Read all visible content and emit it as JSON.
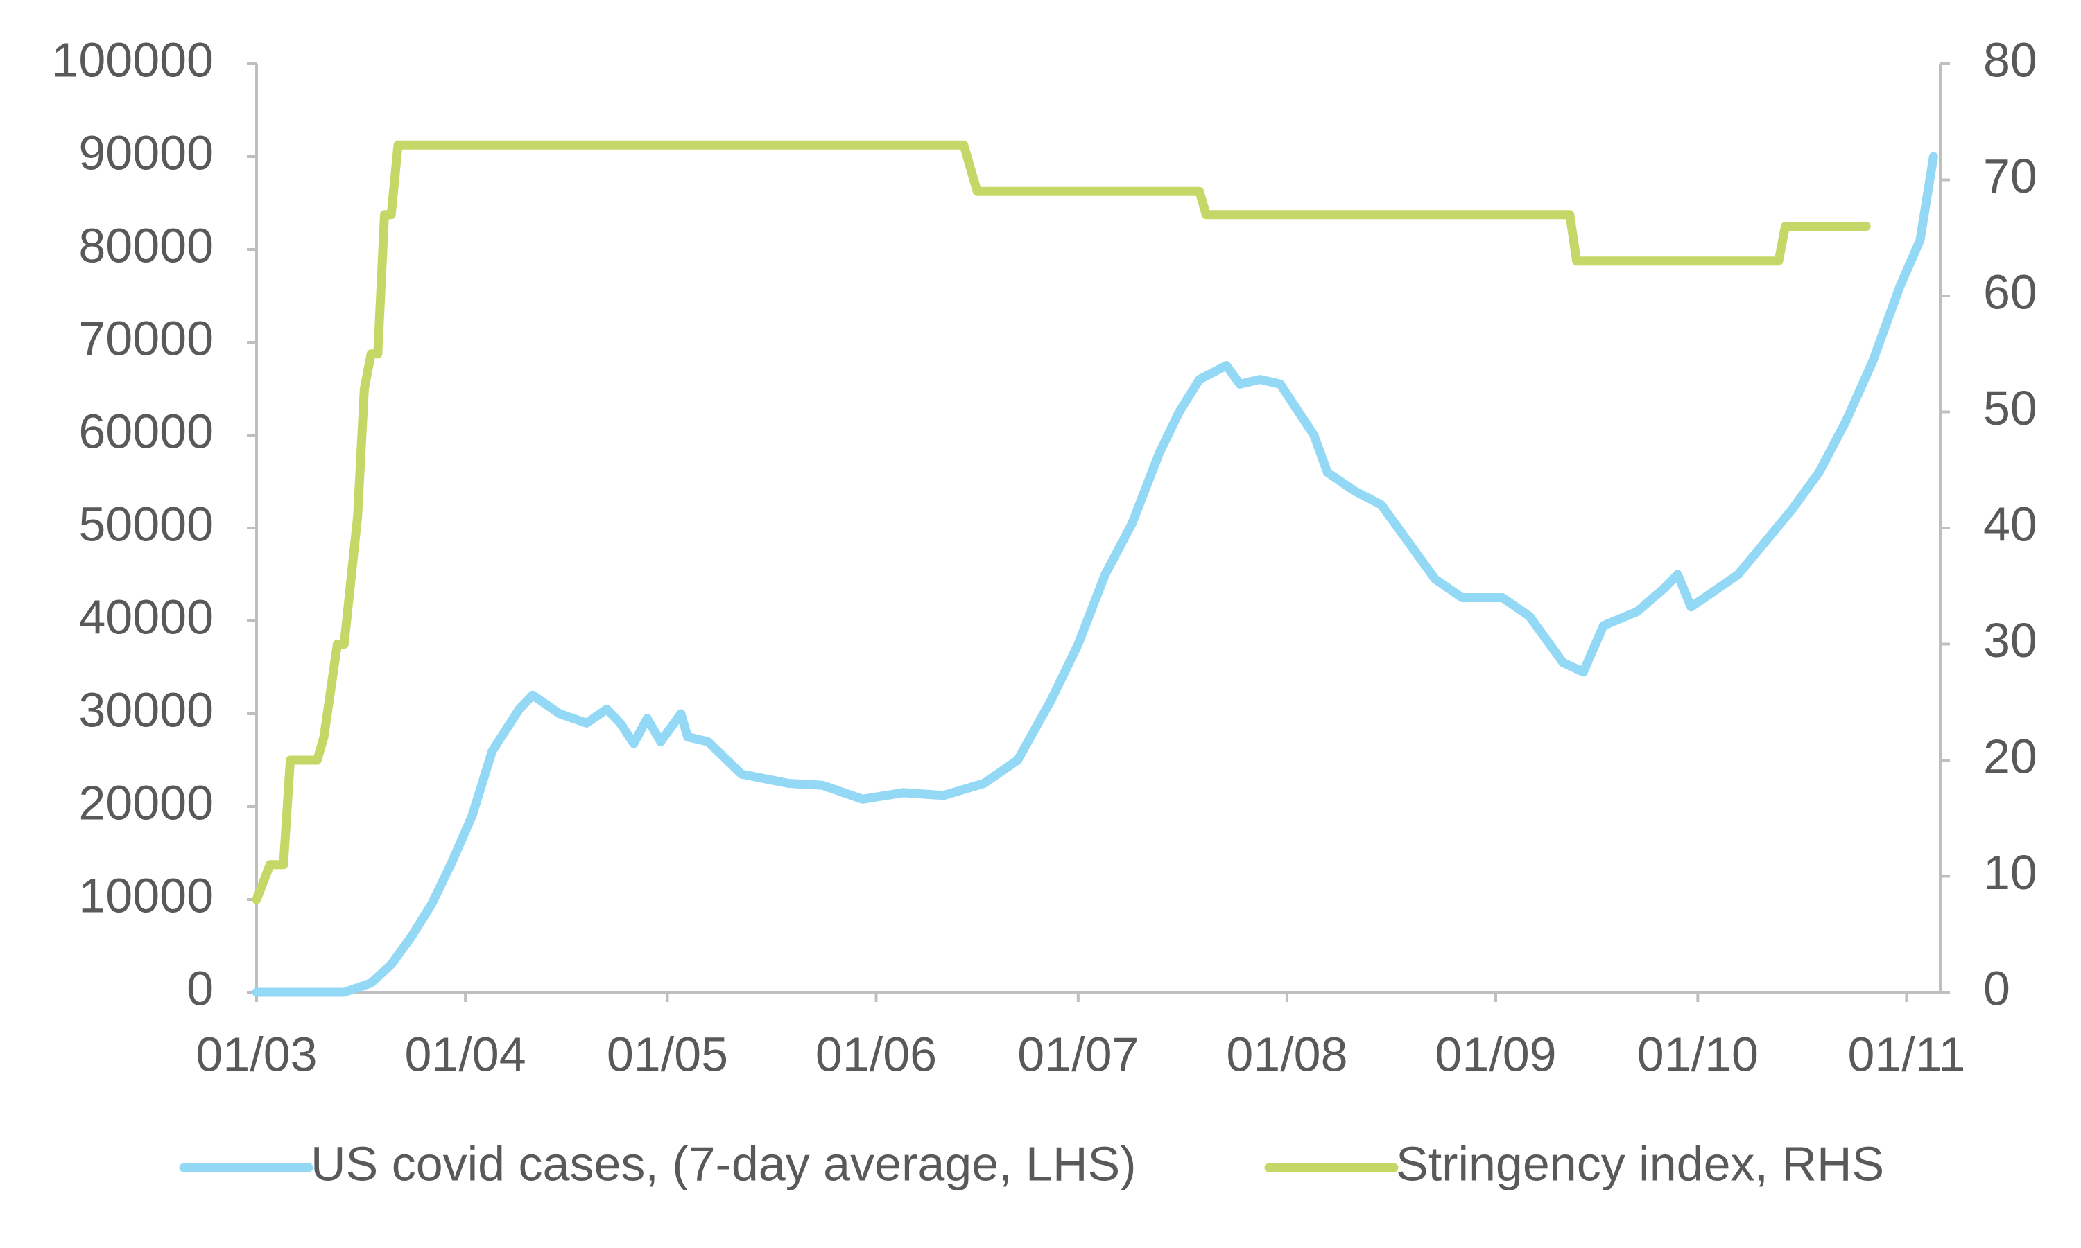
{
  "chart_data": {
    "type": "line",
    "xlim": [
      "01/03",
      "06/11"
    ],
    "xticks": [
      "01/03",
      "01/04",
      "01/05",
      "01/06",
      "01/07",
      "01/08",
      "01/09",
      "01/10",
      "01/11"
    ],
    "ylim": [
      0,
      100000
    ],
    "yticks": [
      0,
      10000,
      20000,
      30000,
      40000,
      50000,
      60000,
      70000,
      80000,
      90000,
      100000
    ],
    "y2lim": [
      0,
      80
    ],
    "y2ticks": [
      0,
      10,
      20,
      30,
      40,
      50,
      60,
      70,
      80
    ],
    "grid": false,
    "legend": "bottom",
    "series": [
      {
        "name": "US covid cases, (7-day average, LHS)",
        "color": "#93d9f5",
        "x": [
          "01/03",
          "14/03",
          "18/03",
          "21/03",
          "24/03",
          "27/03",
          "30/03",
          "02/04",
          "05/04",
          "09/04",
          "11/04",
          "15/04",
          "19/04",
          "22/04",
          "24/04",
          "26/04",
          "28/04",
          "30/04",
          "03/05",
          "04/05",
          "07/05",
          "12/05",
          "19/05",
          "24/05",
          "30/05",
          "05/06",
          "11/06",
          "17/06",
          "22/06",
          "27/06",
          "01/07",
          "05/07",
          "09/07",
          "13/07",
          "16/07",
          "19/07",
          "23/07",
          "25/07",
          "28/07",
          "31/07",
          "05/08",
          "07/08",
          "11/08",
          "15/08",
          "19/08",
          "23/08",
          "27/08",
          "02/09",
          "06/09",
          "11/09",
          "14/09",
          "17/09",
          "22/09",
          "26/09",
          "28/09",
          "30/09",
          "03/10",
          "07/10",
          "11/10",
          "15/10",
          "19/10",
          "23/10",
          "27/10",
          "31/10",
          "03/11",
          "05/11"
        ],
        "values": [
          0,
          0,
          1000,
          3000,
          6000,
          9500,
          14000,
          19000,
          26000,
          30500,
          32000,
          30000,
          29000,
          30500,
          29000,
          26800,
          29500,
          27000,
          30000,
          27500,
          27000,
          23500,
          22500,
          22300,
          20800,
          21500,
          21200,
          22500,
          25000,
          31500,
          37500,
          45000,
          50500,
          58000,
          62500,
          66000,
          67500,
          65500,
          66000,
          65500,
          60000,
          56000,
          54000,
          52500,
          48500,
          44500,
          42500,
          42500,
          40500,
          35500,
          34500,
          39500,
          41000,
          43500,
          45000,
          41500,
          43000,
          45000,
          48500,
          52000,
          56000,
          61500,
          68000,
          76000,
          81000,
          90000
        ]
      },
      {
        "name": "Stringency index, RHS",
        "color": "#c5d867",
        "axis": "y2",
        "x": [
          "01/03",
          "03/03",
          "05/03",
          "06/03",
          "10/03",
          "11/03",
          "13/03",
          "14/03",
          "16/03",
          "17/03",
          "18/03",
          "19/03",
          "20/03",
          "21/03",
          "22/03",
          "14/06",
          "16/06",
          "19/07",
          "20/07",
          "12/09",
          "13/09",
          "13/10",
          "14/10",
          "26/10"
        ],
        "values": [
          8,
          11,
          11,
          20,
          20,
          22,
          30,
          30,
          41,
          52,
          55,
          55,
          67,
          67,
          73,
          73,
          69,
          69,
          67,
          67,
          63,
          63,
          66,
          66
        ]
      }
    ]
  }
}
